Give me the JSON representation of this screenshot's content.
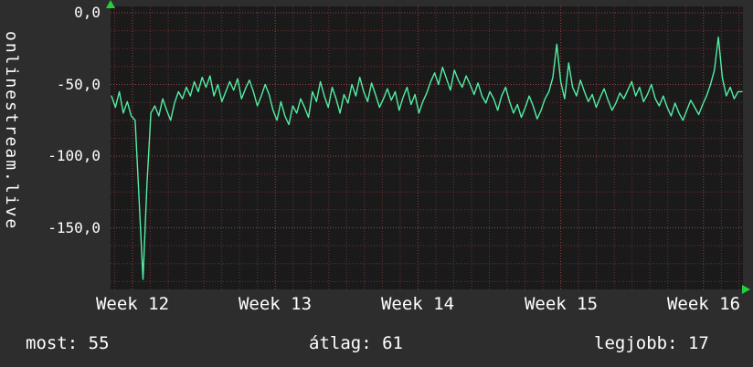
{
  "side_label": "onlinestream.live",
  "footer": {
    "most": "most: 55",
    "atlag": "átlag: 61",
    "legjobb": "legjobb: 17"
  },
  "colors": {
    "background": "#2d2d2d",
    "plot_background": "#1a1a1a",
    "line": "#53eea3",
    "grid_minor": "#6e3030",
    "grid_major": "#9a4040",
    "text": "#ffffff",
    "arrow": "#1fd23c"
  },
  "chart_data": {
    "type": "line",
    "title": "",
    "ylabel": "onlinestream.live",
    "xlabel": "",
    "x_tick_labels": [
      "Week 12",
      "Week 13",
      "Week 14",
      "Week 15",
      "Week 16"
    ],
    "y_tick_labels": [
      "0,0",
      "-50,0",
      "-100,0",
      "-150,0"
    ],
    "y_tick_values": [
      0,
      -50,
      -100,
      -150
    ],
    "ylim": [
      -193,
      0
    ],
    "grid": true,
    "legend": "none",
    "stats": {
      "most": 55,
      "atlag": 61,
      "legjobb": 17
    },
    "values": [
      -58,
      -66,
      -55,
      -70,
      -62,
      -72,
      -75,
      -130,
      -186,
      -120,
      -70,
      -65,
      -72,
      -60,
      -68,
      -75,
      -63,
      -55,
      -60,
      -52,
      -58,
      -48,
      -55,
      -45,
      -52,
      -44,
      -58,
      -50,
      -62,
      -55,
      -48,
      -54,
      -46,
      -60,
      -53,
      -47,
      -55,
      -65,
      -58,
      -50,
      -57,
      -68,
      -75,
      -62,
      -72,
      -78,
      -65,
      -70,
      -60,
      -66,
      -73,
      -55,
      -62,
      -48,
      -58,
      -66,
      -52,
      -60,
      -70,
      -57,
      -63,
      -50,
      -58,
      -45,
      -55,
      -62,
      -49,
      -57,
      -66,
      -60,
      -53,
      -61,
      -55,
      -68,
      -59,
      -52,
      -64,
      -57,
      -70,
      -62,
      -56,
      -48,
      -42,
      -50,
      -38,
      -46,
      -54,
      -40,
      -47,
      -52,
      -44,
      -50,
      -57,
      -49,
      -58,
      -63,
      -55,
      -60,
      -68,
      -58,
      -52,
      -62,
      -70,
      -64,
      -73,
      -66,
      -58,
      -65,
      -74,
      -68,
      -60,
      -55,
      -45,
      -22,
      -48,
      -60,
      -35,
      -52,
      -58,
      -47,
      -55,
      -62,
      -57,
      -66,
      -59,
      -53,
      -61,
      -68,
      -63,
      -56,
      -60,
      -54,
      -48,
      -58,
      -52,
      -62,
      -57,
      -50,
      -60,
      -65,
      -58,
      -66,
      -72,
      -63,
      -70,
      -75,
      -68,
      -61,
      -66,
      -71,
      -64,
      -58,
      -50,
      -40,
      -17,
      -45,
      -58,
      -52,
      -60,
      -55,
      -55
    ]
  }
}
